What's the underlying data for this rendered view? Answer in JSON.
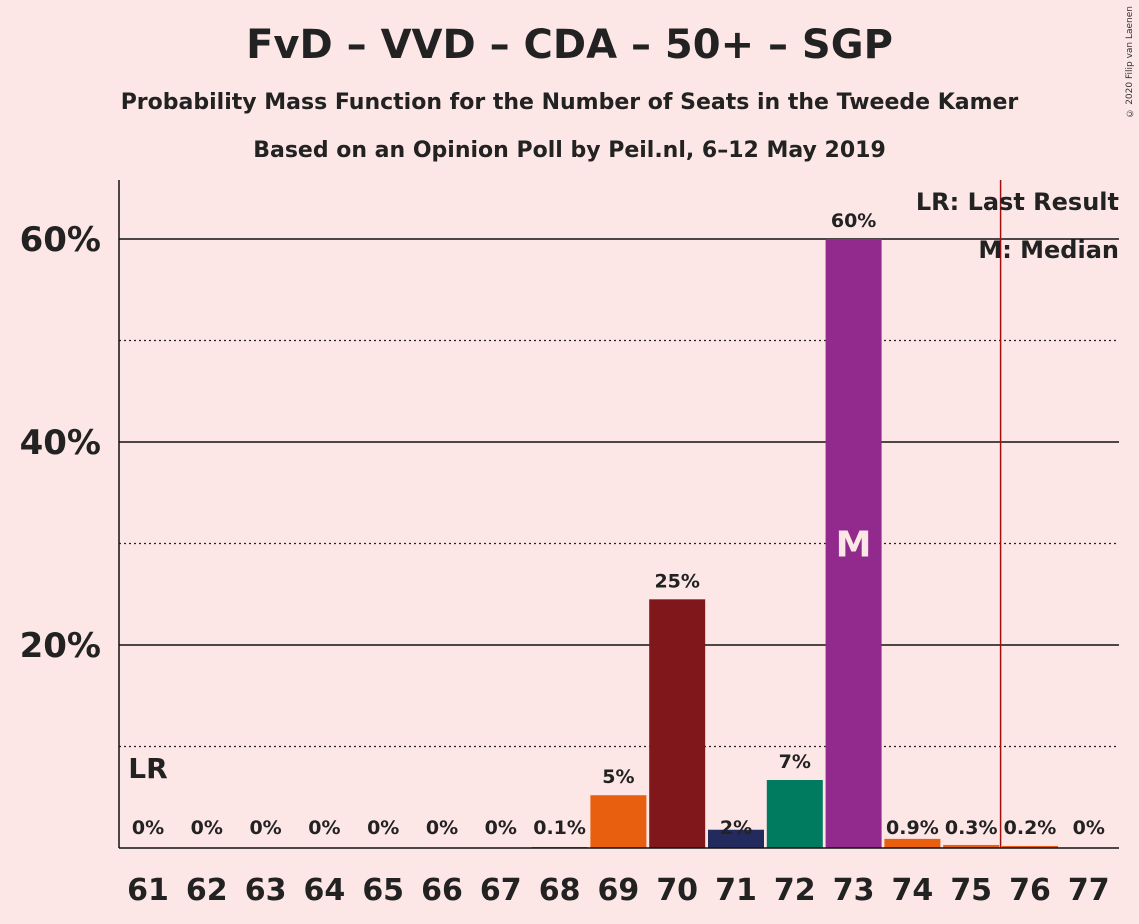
{
  "title": "FvD – VVD – CDA – 50+ – SGP",
  "subtitle": "Probability Mass Function for the Number of Seats in the Tweede Kamer",
  "subtitle2": "Based on an Opinion Poll by Peil.nl, 6–12 May 2019",
  "copyright": "© 2020 Filip van Laenen",
  "chart_data": {
    "type": "bar",
    "categories": [
      "61",
      "62",
      "63",
      "64",
      "65",
      "66",
      "67",
      "68",
      "69",
      "70",
      "71",
      "72",
      "73",
      "74",
      "75",
      "76",
      "77"
    ],
    "values": [
      0,
      0,
      0,
      0,
      0,
      0,
      0,
      0.1,
      5.2,
      24.5,
      1.8,
      6.7,
      60.0,
      0.9,
      0.3,
      0.2,
      0
    ],
    "labels": [
      "0%",
      "0%",
      "0%",
      "0%",
      "0%",
      "0%",
      "0%",
      "0.1%",
      "5%",
      "25%",
      "2%",
      "7%",
      "60%",
      "0.9%",
      "0.3%",
      "0.2%",
      "0%"
    ],
    "colors": [
      "#e8600f",
      "#e8600f",
      "#e8600f",
      "#e8600f",
      "#e8600f",
      "#e8600f",
      "#e8600f",
      "#e8600f",
      "#e8600f",
      "#80171a",
      "#222a5e",
      "#007b5f",
      "#922a8e",
      "#e8600f",
      "#e8600f",
      "#e8600f",
      "#e8600f"
    ],
    "ylim": [
      0,
      65
    ],
    "yticks": [
      {
        "value": 20,
        "label": "20%"
      },
      {
        "value": 40,
        "label": "40%"
      },
      {
        "value": 60,
        "label": "60%"
      }
    ],
    "minor_gridlines": [
      10,
      30,
      50
    ],
    "last_result": {
      "category": "61",
      "label": "LR"
    },
    "majority_line": {
      "after_category": "75",
      "color": "#a01010"
    },
    "median": {
      "category": "73",
      "label": "M"
    },
    "legend": [
      "LR: Last Result",
      "M: Median"
    ],
    "legend_position": "top-right",
    "grid": true
  }
}
